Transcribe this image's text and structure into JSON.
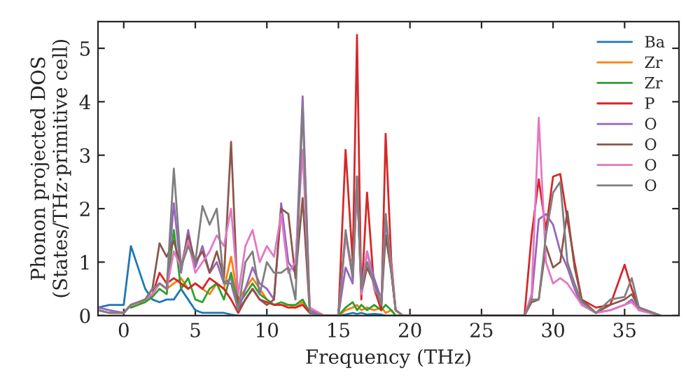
{
  "chart_data": {
    "type": "line",
    "xlabel": "Frequency (THz)",
    "ylabel": "Phonon projected DOS\n(States/THz·primitive cell)",
    "x": [
      -1.8,
      -1,
      0,
      0.5,
      1,
      1.5,
      2,
      2.5,
      3,
      3.5,
      4,
      4.5,
      5,
      5.5,
      6,
      6.5,
      7,
      7.5,
      8,
      8.5,
      9,
      9.5,
      10,
      10.5,
      11,
      11.5,
      12,
      12.5,
      13,
      14,
      15,
      15.5,
      16,
      16.3,
      16.6,
      17,
      17.5,
      18,
      18.3,
      18.7,
      19,
      19.5,
      28,
      28.5,
      29,
      29.5,
      30,
      30.5,
      31,
      31.5,
      32,
      33,
      34,
      35,
      35.5,
      36,
      37.5
    ],
    "series": [
      {
        "name": "Ba",
        "color": "#1f77b4",
        "values": [
          0.15,
          0.2,
          0.2,
          1.3,
          0.9,
          0.5,
          0.3,
          0.25,
          0.3,
          0.3,
          0.5,
          0.3,
          0.1,
          0.05,
          0.05,
          0.05,
          0.05,
          0.02,
          0,
          0,
          0,
          0,
          0,
          0,
          0,
          0,
          0,
          0,
          0,
          0,
          0,
          0.02,
          0.05,
          0.03,
          0.05,
          0.02,
          0.03,
          0.02,
          0,
          0,
          0,
          null,
          null,
          null,
          null,
          null,
          null,
          null,
          null,
          null,
          null,
          null,
          null,
          null,
          null,
          null,
          null
        ]
      },
      {
        "name": "Zr",
        "color": "#ff7f0e",
        "values": [
          null,
          null,
          null,
          0.15,
          0.2,
          0.3,
          0.4,
          0.6,
          0.5,
          0.6,
          0.7,
          0.5,
          0.6,
          0.5,
          0.4,
          0.6,
          0.5,
          1.1,
          0.3,
          0.5,
          0.7,
          0.5,
          0.3,
          0.2,
          0.2,
          0.2,
          0.15,
          0.25,
          0.05,
          0,
          0,
          0.1,
          0.15,
          0.2,
          0.1,
          0.15,
          0.1,
          0.15,
          0.05,
          0.1,
          0,
          0,
          null,
          null,
          null,
          null,
          null,
          null,
          null,
          null,
          null,
          null,
          null,
          null,
          null,
          null,
          null
        ]
      },
      {
        "name": "Zr",
        "color": "#2ca02c",
        "values": [
          null,
          null,
          null,
          0.15,
          0.2,
          0.25,
          0.35,
          0.5,
          0.4,
          1.6,
          0.5,
          0.7,
          0.3,
          0.25,
          0.5,
          0.6,
          0.3,
          0.8,
          0.2,
          0.4,
          0.6,
          0.4,
          0.3,
          0.2,
          0.25,
          0.2,
          0.2,
          0.3,
          0.05,
          0,
          0,
          0.15,
          0.25,
          0.1,
          0.2,
          0.1,
          0.2,
          0.1,
          0.2,
          0.1,
          0,
          0,
          null,
          null,
          null,
          null,
          null,
          null,
          null,
          null,
          null,
          null,
          null,
          null,
          null,
          null,
          null
        ]
      },
      {
        "name": "P",
        "color": "#d62728",
        "values": [
          null,
          null,
          0.05,
          0.2,
          0.25,
          0.3,
          0.4,
          0.8,
          0.6,
          0.7,
          0.6,
          0.5,
          0.6,
          0.5,
          0.7,
          0.6,
          0.5,
          0.3,
          0.05,
          0.3,
          0.5,
          0.3,
          0.25,
          0.2,
          0.2,
          0.15,
          0.15,
          0.2,
          0.05,
          0,
          0,
          3.1,
          1.0,
          5.25,
          0.3,
          2.3,
          0.5,
          0.1,
          3.4,
          1.0,
          0.1,
          0,
          0,
          1.5,
          2.55,
          1.6,
          2.6,
          2.65,
          1.8,
          1.0,
          0.3,
          0.15,
          0.2,
          0.95,
          0.5,
          0.15,
          0
        ]
      },
      {
        "name": "O",
        "color": "#9467bd",
        "values": [
          0.15,
          0.1,
          0.05,
          0.2,
          0.25,
          0.3,
          0.4,
          0.6,
          0.5,
          2.1,
          0.8,
          1.6,
          0.9,
          1.3,
          0.8,
          1.0,
          0.6,
          0.6,
          0.1,
          0.5,
          0.9,
          0.6,
          0.5,
          0.3,
          2.1,
          1.0,
          0.8,
          4.1,
          0.1,
          0,
          0,
          0.9,
          0.6,
          2.5,
          0.5,
          1.2,
          0.7,
          0.3,
          1.8,
          0.8,
          0.1,
          0,
          0,
          0.3,
          1.8,
          1.9,
          1.7,
          1.2,
          0.9,
          0.5,
          0.2,
          0.05,
          0.1,
          0.2,
          0.3,
          0.1,
          0
        ]
      },
      {
        "name": "O",
        "color": "#8c564b",
        "values": [
          0.1,
          0.05,
          0.05,
          0.2,
          0.25,
          0.3,
          0.5,
          1.35,
          1.1,
          1.4,
          0.9,
          1.5,
          1.0,
          1.2,
          0.8,
          1.2,
          0.7,
          3.25,
          0.1,
          0.3,
          0.5,
          0.3,
          0.2,
          0.3,
          2.0,
          1.9,
          0.7,
          2.2,
          0.05,
          0,
          0,
          1.5,
          0.8,
          2.6,
          0.4,
          0.9,
          0.6,
          0.2,
          1.5,
          0.8,
          0.1,
          0,
          0,
          0.25,
          0.3,
          1.3,
          0.9,
          1.0,
          1.95,
          0.9,
          0.3,
          0.05,
          0.2,
          0.3,
          0.4,
          0.15,
          0
        ]
      },
      {
        "name": "O",
        "color": "#e377c2",
        "values": [
          0.1,
          0.05,
          0.05,
          0.2,
          0.25,
          0.3,
          0.4,
          0.6,
          0.5,
          1.2,
          0.9,
          1.4,
          0.8,
          1.0,
          1.2,
          1.5,
          1.3,
          2.0,
          0.4,
          1.3,
          1.6,
          1.0,
          1.3,
          1.1,
          1.9,
          0.8,
          1.0,
          3.1,
          0.15,
          0,
          0,
          1.5,
          0.7,
          2.6,
          0.4,
          1.2,
          0.5,
          0.3,
          1.9,
          0.9,
          0.1,
          0,
          0,
          0.4,
          3.7,
          1.0,
          0.6,
          0.7,
          0.6,
          0.4,
          0.2,
          0.05,
          0.1,
          0.2,
          0.25,
          0.1,
          0
        ]
      },
      {
        "name": "O",
        "color": "#7f7f7f",
        "values": [
          0.1,
          0.05,
          0.05,
          0.2,
          0.25,
          0.3,
          0.5,
          0.6,
          0.5,
          2.75,
          0.9,
          1.3,
          1.0,
          2.05,
          1.7,
          2.0,
          0.6,
          0.7,
          0.1,
          1.0,
          1.2,
          0.4,
          1.0,
          0.8,
          0.8,
          0.9,
          0.3,
          3.9,
          0.05,
          0,
          0,
          1.6,
          0.7,
          2.6,
          0.5,
          1.0,
          0.6,
          0.2,
          1.9,
          0.8,
          0.1,
          0,
          0,
          0.3,
          0.3,
          1.5,
          2.3,
          2.5,
          1.0,
          0.6,
          0.25,
          0.05,
          0.3,
          0.35,
          0.7,
          0.15,
          0
        ]
      }
    ],
    "xlim": [
      -1.8,
      38.8
    ],
    "xticks": [
      0,
      5,
      10,
      15,
      20,
      25,
      30,
      35
    ],
    "ylim": [
      0,
      5.5
    ],
    "yticks": [
      0,
      1,
      2,
      3,
      4,
      5
    ],
    "grid": false,
    "legend": "top right",
    "line_style": "solid",
    "marker": "none"
  }
}
